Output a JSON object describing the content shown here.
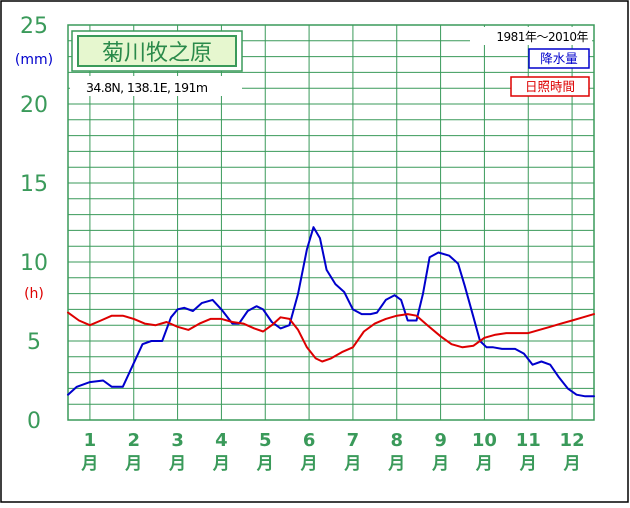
{
  "chart_data": {
    "type": "line",
    "title": "菊川牧之原",
    "location_info": "34.8N,  138.1E,  191m",
    "period_label": "1981年〜2010年",
    "y_unit_precip": "(mm)",
    "y_unit_sun": "(h)",
    "ylim": [
      0,
      25
    ],
    "y_ticks": [
      "0",
      "5",
      "10",
      "15",
      "20",
      "25"
    ],
    "month_numbers": [
      "1",
      "2",
      "3",
      "4",
      "5",
      "6",
      "7",
      "8",
      "9",
      "10",
      "11",
      "12"
    ],
    "month_suffix": "月",
    "x_range": [
      0.5,
      12.5
    ],
    "grid": true,
    "legend_position": "top-right",
    "series": [
      {
        "name": "降水量",
        "color": "#0000cc",
        "x": [
          0.5,
          0.7,
          1.0,
          1.3,
          1.5,
          1.75,
          2.0,
          2.2,
          2.4,
          2.65,
          2.85,
          3.0,
          3.15,
          3.35,
          3.55,
          3.8,
          4.0,
          4.25,
          4.4,
          4.6,
          4.8,
          4.95,
          5.15,
          5.35,
          5.55,
          5.75,
          5.95,
          6.1,
          6.25,
          6.4,
          6.6,
          6.8,
          7.0,
          7.2,
          7.4,
          7.55,
          7.75,
          7.95,
          8.1,
          8.25,
          8.45,
          8.6,
          8.75,
          8.95,
          9.2,
          9.4,
          9.55,
          9.75,
          9.9,
          10.05,
          10.2,
          10.4,
          10.7,
          10.9,
          11.1,
          11.3,
          11.5,
          11.7,
          11.9,
          12.1,
          12.3,
          12.5
        ],
        "values": [
          1.6,
          2.1,
          2.4,
          2.5,
          2.1,
          2.1,
          3.6,
          4.8,
          5.0,
          5.0,
          6.5,
          7.0,
          7.1,
          6.9,
          7.4,
          7.6,
          7.0,
          6.1,
          6.1,
          6.9,
          7.2,
          7.0,
          6.2,
          5.8,
          6.0,
          8.0,
          10.8,
          12.2,
          11.5,
          9.5,
          8.6,
          8.1,
          7.0,
          6.7,
          6.7,
          6.8,
          7.6,
          7.9,
          7.6,
          6.3,
          6.3,
          8.0,
          10.3,
          10.6,
          10.4,
          9.9,
          8.5,
          6.5,
          5.0,
          4.6,
          4.6,
          4.5,
          4.5,
          4.2,
          3.5,
          3.7,
          3.5,
          2.7,
          2.0,
          1.6,
          1.5,
          1.5
        ]
      },
      {
        "name": "日照時間",
        "color": "#dd0000",
        "x": [
          0.5,
          0.75,
          1.0,
          1.25,
          1.5,
          1.75,
          2.0,
          2.25,
          2.5,
          2.75,
          3.0,
          3.25,
          3.5,
          3.75,
          4.0,
          4.25,
          4.5,
          4.75,
          4.95,
          5.15,
          5.35,
          5.55,
          5.75,
          5.95,
          6.15,
          6.3,
          6.5,
          6.75,
          7.0,
          7.25,
          7.5,
          7.75,
          8.0,
          8.25,
          8.45,
          8.7,
          9.0,
          9.25,
          9.5,
          9.75,
          10.0,
          10.25,
          10.5,
          10.75,
          11.0,
          11.25,
          11.5,
          11.75,
          12.0,
          12.25,
          12.5
        ],
        "values": [
          6.8,
          6.3,
          6.0,
          6.3,
          6.6,
          6.6,
          6.4,
          6.1,
          6.0,
          6.2,
          5.9,
          5.7,
          6.1,
          6.4,
          6.4,
          6.2,
          6.1,
          5.8,
          5.6,
          6.0,
          6.5,
          6.4,
          5.7,
          4.6,
          3.9,
          3.7,
          3.9,
          4.3,
          4.6,
          5.6,
          6.1,
          6.4,
          6.6,
          6.7,
          6.6,
          6.0,
          5.3,
          4.8,
          4.6,
          4.7,
          5.2,
          5.4,
          5.5,
          5.5,
          5.5,
          5.7,
          5.9,
          6.1,
          6.3,
          6.5,
          6.7
        ]
      }
    ]
  }
}
